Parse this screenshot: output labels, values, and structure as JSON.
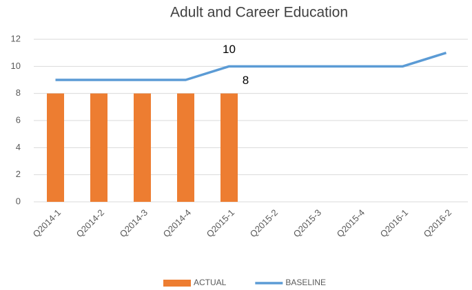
{
  "chart_data": {
    "type": "combo",
    "title": "Adult and Career Education",
    "categories": [
      "Q2014-1",
      "Q2014-2",
      "Q2014-3",
      "Q2014-4",
      "Q2015-1",
      "Q2015-2",
      "Q2015-3",
      "Q2015-4",
      "Q2016-1",
      "Q2016-2"
    ],
    "series": [
      {
        "name": "ACTUAL",
        "type": "bar",
        "color": "#ed7d31",
        "values": [
          8,
          8,
          8,
          8,
          8,
          null,
          null,
          null,
          null,
          null
        ],
        "value_labels": [
          null,
          null,
          null,
          null,
          "8",
          null,
          null,
          null,
          null,
          null
        ]
      },
      {
        "name": "BASELINE",
        "type": "line",
        "color": "#5b9bd5",
        "values": [
          9,
          9,
          9,
          9,
          10,
          10,
          10,
          10,
          10,
          11
        ],
        "value_labels": [
          null,
          null,
          null,
          null,
          "10",
          null,
          null,
          null,
          null,
          null
        ]
      }
    ],
    "ylim": [
      0,
      12
    ],
    "yticks": [
      0,
      2,
      4,
      6,
      8,
      10,
      12
    ],
    "grid": true,
    "legend": "bottom"
  }
}
